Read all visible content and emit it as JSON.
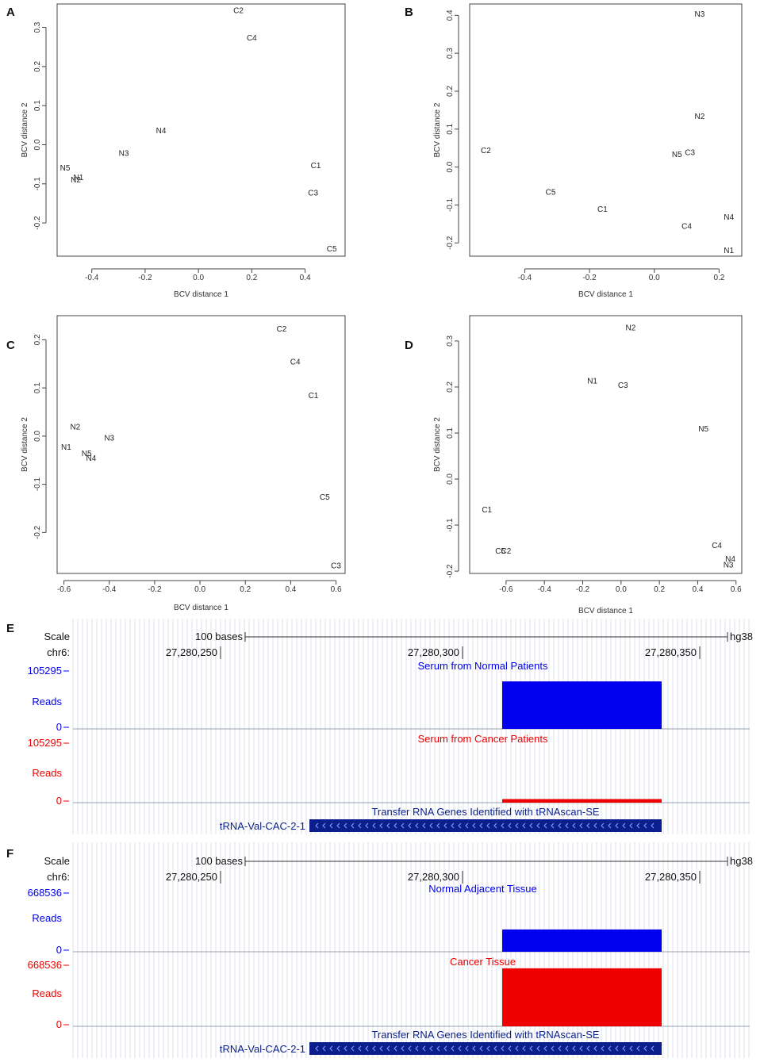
{
  "colors": {
    "normal": "#0000ee",
    "cancer": "#ee0000",
    "gene": "#0a1f8c",
    "grid": "#dfe2ee"
  },
  "chart_data": [
    {
      "panel": "A",
      "type": "scatter",
      "xlabel": "BCV distance 1",
      "ylabel": "BCV distance 2",
      "xlim": [
        -0.53,
        0.55
      ],
      "ylim": [
        -0.285,
        0.36
      ],
      "xticks": [
        -0.4,
        -0.2,
        0.0,
        0.2,
        0.4
      ],
      "xtick_labels": [
        "-0.4",
        "-0.2",
        "0.0",
        "0.2",
        "0.4"
      ],
      "yticks": [
        -0.2,
        -0.1,
        0.0,
        0.1,
        0.2,
        0.3
      ],
      "ytick_labels": [
        "-0.2",
        "-0.1",
        "0.0",
        "0.1",
        "0.2",
        "0.3"
      ],
      "points": [
        {
          "label": "C2",
          "x": 0.15,
          "y": 0.345
        },
        {
          "label": "C4",
          "x": 0.2,
          "y": 0.275
        },
        {
          "label": "N4",
          "x": -0.14,
          "y": 0.038
        },
        {
          "label": "N3",
          "x": -0.28,
          "y": -0.02
        },
        {
          "label": "N5",
          "x": -0.5,
          "y": -0.058
        },
        {
          "label": "N1",
          "x": -0.45,
          "y": -0.082
        },
        {
          "label": "N2",
          "x": -0.46,
          "y": -0.088
        },
        {
          "label": "C1",
          "x": 0.44,
          "y": -0.052
        },
        {
          "label": "C3",
          "x": 0.43,
          "y": -0.122
        },
        {
          "label": "C5",
          "x": 0.5,
          "y": -0.265
        }
      ]
    },
    {
      "panel": "B",
      "type": "scatter",
      "xlabel": "BCV distance 1",
      "ylabel": "BCV distance 2",
      "xlim": [
        -0.57,
        0.27
      ],
      "ylim": [
        -0.235,
        0.43
      ],
      "xticks": [
        -0.4,
        -0.2,
        0.0,
        0.2
      ],
      "xtick_labels": [
        "-0.4",
        "-0.2",
        "0.0",
        "0.2"
      ],
      "yticks": [
        -0.2,
        -0.1,
        0.0,
        0.1,
        0.2,
        0.3,
        0.4
      ],
      "ytick_labels": [
        "-0.2",
        "-0.1",
        "0.0",
        "0.1",
        "0.2",
        "0.3",
        "0.4"
      ],
      "points": [
        {
          "label": "N3",
          "x": 0.14,
          "y": 0.405
        },
        {
          "label": "N2",
          "x": 0.14,
          "y": 0.135
        },
        {
          "label": "N5",
          "x": 0.07,
          "y": 0.035
        },
        {
          "label": "C3",
          "x": 0.11,
          "y": 0.04
        },
        {
          "label": "C2",
          "x": -0.52,
          "y": 0.045
        },
        {
          "label": "C5",
          "x": -0.32,
          "y": -0.065
        },
        {
          "label": "C1",
          "x": -0.16,
          "y": -0.11
        },
        {
          "label": "N4",
          "x": 0.23,
          "y": -0.13
        },
        {
          "label": "C4",
          "x": 0.1,
          "y": -0.155
        },
        {
          "label": "N1",
          "x": 0.23,
          "y": -0.218
        }
      ]
    },
    {
      "panel": "C",
      "type": "scatter",
      "xlabel": "BCV distance 1",
      "ylabel": "BCV distance 2",
      "xlim": [
        -0.63,
        0.64
      ],
      "ylim": [
        -0.285,
        0.25
      ],
      "xticks": [
        -0.6,
        -0.4,
        -0.2,
        0.0,
        0.2,
        0.4,
        0.6
      ],
      "xtick_labels": [
        "-0.6",
        "-0.4",
        "-0.2",
        "0.0",
        "0.2",
        "0.4",
        "0.6"
      ],
      "yticks": [
        -0.2,
        -0.1,
        0.0,
        0.1,
        0.2
      ],
      "ytick_labels": [
        "-0.2",
        "-0.1",
        "0.0",
        "0.1",
        "0.2"
      ],
      "points": [
        {
          "label": "C2",
          "x": 0.36,
          "y": 0.224
        },
        {
          "label": "C4",
          "x": 0.42,
          "y": 0.155
        },
        {
          "label": "C1",
          "x": 0.5,
          "y": 0.085
        },
        {
          "label": "N2",
          "x": -0.55,
          "y": 0.02
        },
        {
          "label": "N3",
          "x": -0.4,
          "y": -0.003
        },
        {
          "label": "N1",
          "x": -0.59,
          "y": -0.022
        },
        {
          "label": "N5",
          "x": -0.5,
          "y": -0.035
        },
        {
          "label": "N4",
          "x": -0.48,
          "y": -0.045
        },
        {
          "label": "C5",
          "x": 0.55,
          "y": -0.125
        },
        {
          "label": "C3",
          "x": 0.6,
          "y": -0.268
        }
      ]
    },
    {
      "panel": "D",
      "type": "scatter",
      "xlabel": "BCV distance 1",
      "ylabel": "BCV distance 2",
      "xlim": [
        -0.79,
        0.63
      ],
      "ylim": [
        -0.205,
        0.355
      ],
      "xticks": [
        -0.6,
        -0.4,
        -0.2,
        0.0,
        0.2,
        0.4,
        0.6
      ],
      "xtick_labels": [
        "-0.6",
        "-0.4",
        "-0.2",
        "0.0",
        "0.2",
        "0.4",
        "0.6"
      ],
      "yticks": [
        -0.2,
        -0.1,
        0.0,
        0.1,
        0.2,
        0.3
      ],
      "ytick_labels": [
        "-0.2",
        "-0.1",
        "0.0",
        "0.1",
        "0.2",
        "0.3"
      ],
      "points": [
        {
          "label": "N2",
          "x": 0.05,
          "y": 0.33
        },
        {
          "label": "N1",
          "x": -0.15,
          "y": 0.215
        },
        {
          "label": "C3",
          "x": 0.01,
          "y": 0.205
        },
        {
          "label": "N5",
          "x": 0.43,
          "y": 0.11
        },
        {
          "label": "C1",
          "x": -0.7,
          "y": -0.065
        },
        {
          "label": "C5",
          "x": -0.63,
          "y": -0.155
        },
        {
          "label": "C2",
          "x": -0.6,
          "y": -0.155
        },
        {
          "label": "C4",
          "x": 0.5,
          "y": -0.143
        },
        {
          "label": "N4",
          "x": 0.57,
          "y": -0.172
        },
        {
          "label": "N3",
          "x": 0.56,
          "y": -0.185
        }
      ]
    }
  ],
  "browser_tracks": [
    {
      "panel": "E",
      "scale_label": "Scale",
      "scale_text": "100 bases",
      "genome": "hg38",
      "chrom_label": "chr6:",
      "coords": [
        "27,280,250",
        "27,280,300",
        "27,280,350"
      ],
      "tracks": [
        {
          "title": "Serum from Normal Patients",
          "ymax": "105295",
          "ymid": "Reads",
          "ymin": "0",
          "color": "normal",
          "fill_level": 0.82
        },
        {
          "title": "Serum from Cancer Patients",
          "ymax": "105295",
          "ymid": "Reads",
          "ymin": "0",
          "color": "cancer",
          "fill_level": 0.06
        }
      ],
      "gene_track_title": "Transfer RNA Genes Identified with tRNAscan-SE",
      "gene_name": "tRNA-Val-CAC-2-1"
    },
    {
      "panel": "F",
      "scale_label": "Scale",
      "scale_text": "100 bases",
      "genome": "hg38",
      "chrom_label": "chr6:",
      "coords": [
        "27,280,250",
        "27,280,300",
        "27,280,350"
      ],
      "tracks": [
        {
          "title": "Normal Adjacent Tissue",
          "ymax": "668536",
          "ymid": "Reads",
          "ymin": "0",
          "color": "normal",
          "fill_level": 0.38
        },
        {
          "title": "Cancer Tissue",
          "ymax": "668536",
          "ymid": "Reads",
          "ymin": "0",
          "color": "cancer",
          "fill_level": 0.95
        }
      ],
      "gene_track_title": "Transfer RNA Genes Identified with tRNAscan-SE",
      "gene_name": "tRNA-Val-CAC-2-1"
    }
  ]
}
